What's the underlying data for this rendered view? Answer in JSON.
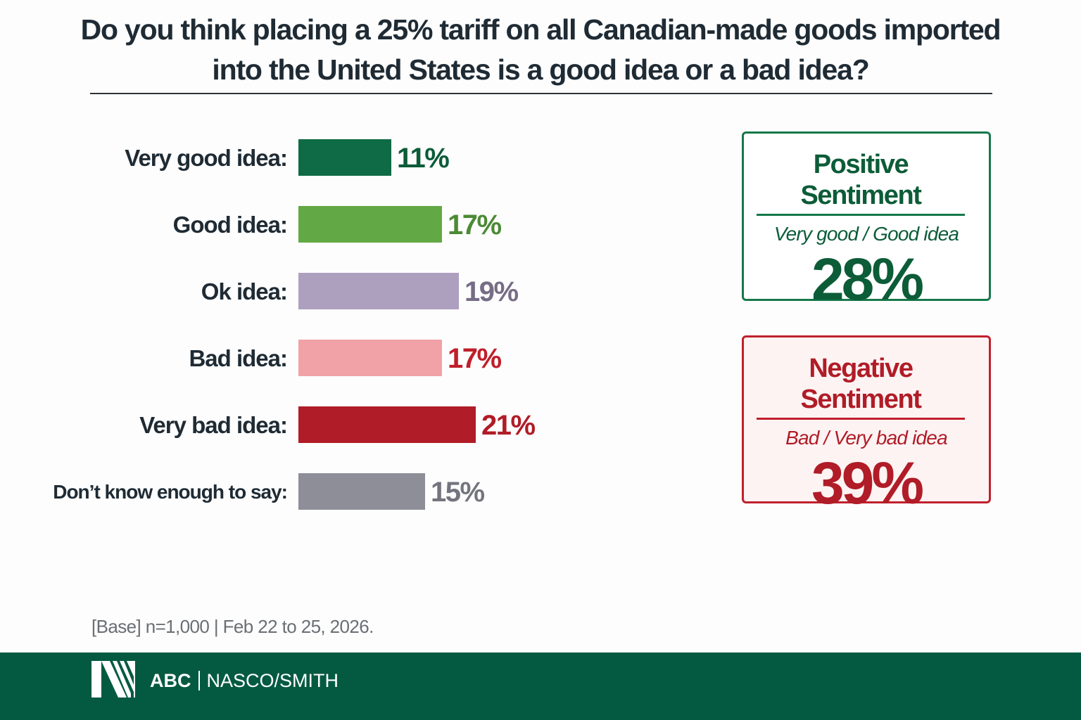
{
  "chart_data": {
    "type": "bar",
    "orientation": "horizontal",
    "title": "Do you think placing a 25% tariff on all Canadian-made goods imported into the United States is a good idea or a bad idea?",
    "categories": [
      "Very good idea:",
      "Good idea:",
      "Ok idea:",
      "Bad idea:",
      "Very bad idea:",
      "Don’t know enough to say:"
    ],
    "values": [
      11,
      17,
      19,
      17,
      21,
      15
    ],
    "value_labels": [
      "11%",
      "17%",
      "19%",
      "17%",
      "21%",
      "15%"
    ],
    "unit": "%",
    "bar_colors": [
      "#0e6b45",
      "#62a844",
      "#ada0bf",
      "#f0a2a7",
      "#b01c27",
      "#8e8e98"
    ],
    "label_colors": [
      "#0c5c38",
      "#4d8a35",
      "#766c86",
      "#c01e2a",
      "#b01c27",
      "#74747e"
    ],
    "grid": false
  },
  "summary": {
    "positive": {
      "title": "Positive Sentiment",
      "subtitle": "Very good / Good idea",
      "value": "28%",
      "color": "#0c5c38"
    },
    "negative": {
      "title": "Negative Sentiment",
      "subtitle": "Bad / Very bad idea",
      "value": "39%",
      "color": "#b01c27"
    }
  },
  "base_note": "[Base] n=1,000 | Feb 22 to 25, 2026.",
  "footer": {
    "brand_bold": "ABC",
    "brand_rest": "NASCO/SMITH",
    "background": "#045a40",
    "logo_icon": "stylized-N-logo"
  }
}
